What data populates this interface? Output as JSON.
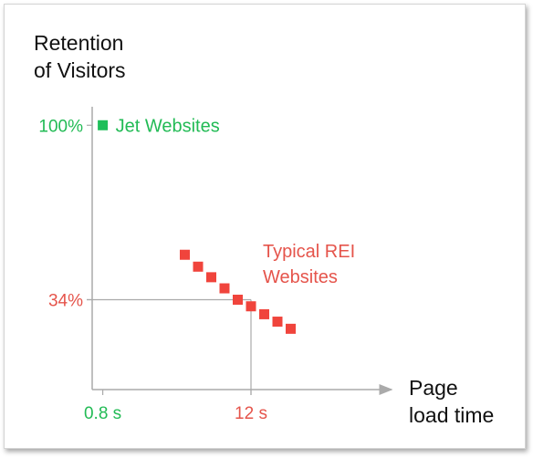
{
  "chart_data": {
    "type": "scatter",
    "ylabel": [
      "Retention",
      "of Visitors"
    ],
    "xlabel": [
      "Page",
      "load time"
    ],
    "x_ticks": [
      {
        "value": 0.8,
        "label": "0.8 s",
        "color": "#22bb55"
      },
      {
        "value": 12,
        "label": "12 s",
        "color": "#e5544b"
      }
    ],
    "y_ticks": [
      {
        "value": 100,
        "label": "100%",
        "color": "#22bb55"
      },
      {
        "value": 34,
        "label": "34%",
        "color": "#e5544b"
      }
    ],
    "xlim": [
      0,
      22
    ],
    "ylim": [
      0,
      107
    ],
    "series": [
      {
        "name": "Jet Websites",
        "color": "#1fbf5a",
        "points": [
          {
            "x": 0.8,
            "y": 100
          }
        ]
      },
      {
        "name": "Typical REI Websites",
        "color": "#f0443c",
        "points": [
          {
            "x": 7.0,
            "y": 51
          },
          {
            "x": 8.0,
            "y": 46.5
          },
          {
            "x": 9.0,
            "y": 42.5
          },
          {
            "x": 10.0,
            "y": 38.3
          },
          {
            "x": 11.0,
            "y": 34
          },
          {
            "x": 12.0,
            "y": 31.5
          },
          {
            "x": 13.0,
            "y": 28.5
          },
          {
            "x": 14.0,
            "y": 25.7
          },
          {
            "x": 15.0,
            "y": 23
          }
        ]
      }
    ]
  }
}
